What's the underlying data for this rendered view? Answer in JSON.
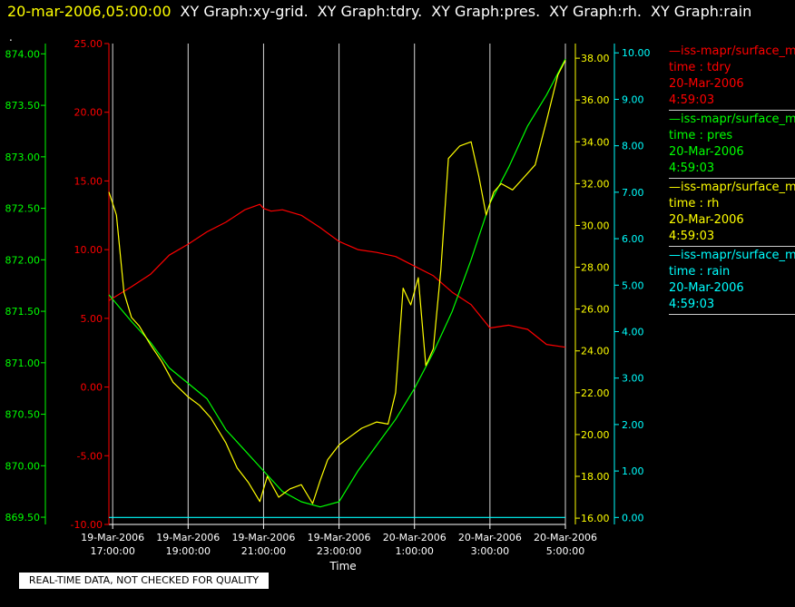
{
  "header": {
    "timestamp": "20-mar-2006,05:00:00",
    "items": [
      "XY Graph:xy-grid.",
      "XY Graph:tdry.",
      "XY Graph:pres.",
      "XY Graph:rh.",
      "XY Graph:rain"
    ],
    "dot": "."
  },
  "legend": [
    {
      "name": "—iss-mapr/surface_m",
      "label": "time : tdry",
      "date": "20-Mar-2006",
      "time": "4:59:03",
      "color": "#ff0000"
    },
    {
      "name": "—iss-mapr/surface_m",
      "label": "time : pres",
      "date": "20-Mar-2006",
      "time": "4:59:03",
      "color": "#00ff00"
    },
    {
      "name": "—iss-mapr/surface_m",
      "label": "time : rh",
      "date": "20-Mar-2006",
      "time": "4:59:03",
      "color": "#ffff00"
    },
    {
      "name": "—iss-mapr/surface_m",
      "label": "time : rain",
      "date": "20-Mar-2006",
      "time": "4:59:03",
      "color": "#00ffff"
    }
  ],
  "disclaimer": "REAL-TIME DATA, NOT CHECKED FOR QUALITY",
  "chart_data": {
    "type": "line",
    "xlabel": "Time",
    "x_range_hours": [
      16.9,
      29.0
    ],
    "x_ticks": [
      {
        "h": 17,
        "date": "19-Mar-2006",
        "time": "17:00:00"
      },
      {
        "h": 19,
        "date": "19-Mar-2006",
        "time": "19:00:00"
      },
      {
        "h": 21,
        "date": "19-Mar-2006",
        "time": "21:00:00"
      },
      {
        "h": 23,
        "date": "19-Mar-2006",
        "time": "23:00:00"
      },
      {
        "h": 25,
        "date": "20-Mar-2006",
        "time": "1:00:00"
      },
      {
        "h": 27,
        "date": "20-Mar-2006",
        "time": "3:00:00"
      },
      {
        "h": 29,
        "date": "20-Mar-2006",
        "time": "5:00:00"
      }
    ],
    "axes": {
      "tdry": {
        "range": [
          -10,
          25
        ],
        "ticks": [
          "25.00",
          "20.00",
          "15.00",
          "10.00",
          "5.00",
          "0.00",
          "-5.00",
          "-10.00"
        ],
        "color": "#ff0000"
      },
      "pres": {
        "range": [
          869.43,
          874.1
        ],
        "ticks": [
          "874.00",
          "873.50",
          "873.00",
          "872.50",
          "872.00",
          "871.50",
          "871.00",
          "870.50",
          "870.00",
          "869.50"
        ],
        "color": "#00ff00"
      },
      "rh": {
        "range": [
          15.7,
          38.7
        ],
        "ticks": [
          "38.00",
          "36.00",
          "34.00",
          "32.00",
          "30.00",
          "28.00",
          "26.00",
          "24.00",
          "22.00",
          "20.00",
          "18.00",
          "16.00"
        ],
        "color": "#ffff00"
      },
      "rain": {
        "range": [
          -0.15,
          10.2
        ],
        "ticks": [
          "10.00",
          "9.00",
          "8.00",
          "7.00",
          "6.00",
          "5.00",
          "4.00",
          "3.00",
          "2.00",
          "1.00",
          "0.00"
        ],
        "color": "#00ffff"
      }
    },
    "series": [
      {
        "name": "tdry",
        "axis": "tdry",
        "color": "#ff0000",
        "points": [
          [
            16.9,
            6.3
          ],
          [
            17.5,
            7.3
          ],
          [
            18.0,
            8.2
          ],
          [
            18.5,
            9.6
          ],
          [
            19.0,
            10.4
          ],
          [
            19.5,
            11.3
          ],
          [
            20.0,
            12.0
          ],
          [
            20.5,
            12.9
          ],
          [
            20.9,
            13.3
          ],
          [
            21.0,
            13.0
          ],
          [
            21.2,
            12.8
          ],
          [
            21.5,
            12.9
          ],
          [
            22.0,
            12.5
          ],
          [
            22.5,
            11.6
          ],
          [
            23.0,
            10.6
          ],
          [
            23.5,
            10.0
          ],
          [
            24.0,
            9.8
          ],
          [
            24.5,
            9.5
          ],
          [
            25.0,
            8.8
          ],
          [
            25.5,
            8.1
          ],
          [
            26.0,
            6.9
          ],
          [
            26.5,
            6.0
          ],
          [
            27.0,
            4.3
          ],
          [
            27.5,
            4.5
          ],
          [
            28.0,
            4.2
          ],
          [
            28.5,
            3.1
          ],
          [
            29.0,
            2.9
          ]
        ]
      },
      {
        "name": "pres",
        "axis": "pres",
        "color": "#00ff00",
        "points": [
          [
            16.9,
            871.66
          ],
          [
            17.5,
            871.4
          ],
          [
            18.0,
            871.2
          ],
          [
            18.5,
            870.95
          ],
          [
            19.0,
            870.8
          ],
          [
            19.5,
            870.65
          ],
          [
            20.0,
            870.35
          ],
          [
            20.5,
            870.15
          ],
          [
            21.0,
            869.95
          ],
          [
            21.5,
            869.75
          ],
          [
            22.0,
            869.65
          ],
          [
            22.5,
            869.6
          ],
          [
            23.0,
            869.65
          ],
          [
            23.5,
            869.95
          ],
          [
            24.0,
            870.2
          ],
          [
            24.5,
            870.45
          ],
          [
            25.0,
            870.75
          ],
          [
            25.5,
            871.1
          ],
          [
            26.0,
            871.5
          ],
          [
            26.5,
            872.0
          ],
          [
            27.0,
            872.55
          ],
          [
            27.5,
            872.9
          ],
          [
            28.0,
            873.3
          ],
          [
            28.5,
            873.6
          ],
          [
            29.0,
            873.95
          ]
        ]
      },
      {
        "name": "rh",
        "axis": "rh",
        "color": "#ffff00",
        "points": [
          [
            16.9,
            31.6
          ],
          [
            17.1,
            30.5
          ],
          [
            17.3,
            26.8
          ],
          [
            17.5,
            25.6
          ],
          [
            17.7,
            25.2
          ],
          [
            18.0,
            24.3
          ],
          [
            18.3,
            23.5
          ],
          [
            18.6,
            22.5
          ],
          [
            19.0,
            21.8
          ],
          [
            19.3,
            21.4
          ],
          [
            19.6,
            20.8
          ],
          [
            20.0,
            19.6
          ],
          [
            20.3,
            18.4
          ],
          [
            20.6,
            17.7
          ],
          [
            20.9,
            16.8
          ],
          [
            21.1,
            18.0
          ],
          [
            21.4,
            17.0
          ],
          [
            21.7,
            17.4
          ],
          [
            22.0,
            17.6
          ],
          [
            22.3,
            16.7
          ],
          [
            22.5,
            17.8
          ],
          [
            22.7,
            18.8
          ],
          [
            23.0,
            19.5
          ],
          [
            23.3,
            19.9
          ],
          [
            23.6,
            20.3
          ],
          [
            24.0,
            20.6
          ],
          [
            24.3,
            20.5
          ],
          [
            24.5,
            22.0
          ],
          [
            24.7,
            27.0
          ],
          [
            24.9,
            26.2
          ],
          [
            25.1,
            27.5
          ],
          [
            25.3,
            23.3
          ],
          [
            25.5,
            24.1
          ],
          [
            25.7,
            27.9
          ],
          [
            25.9,
            33.2
          ],
          [
            26.2,
            33.8
          ],
          [
            26.5,
            34.0
          ],
          [
            26.7,
            32.4
          ],
          [
            26.9,
            30.5
          ],
          [
            27.1,
            31.6
          ],
          [
            27.3,
            32.0
          ],
          [
            27.6,
            31.7
          ],
          [
            27.9,
            32.3
          ],
          [
            28.2,
            32.9
          ],
          [
            28.5,
            35.0
          ],
          [
            28.8,
            37.2
          ],
          [
            29.0,
            37.9
          ]
        ]
      },
      {
        "name": "rain",
        "axis": "rain",
        "color": "#00ffff",
        "points": [
          [
            16.9,
            0.0
          ],
          [
            29.0,
            0.0
          ]
        ]
      }
    ]
  }
}
